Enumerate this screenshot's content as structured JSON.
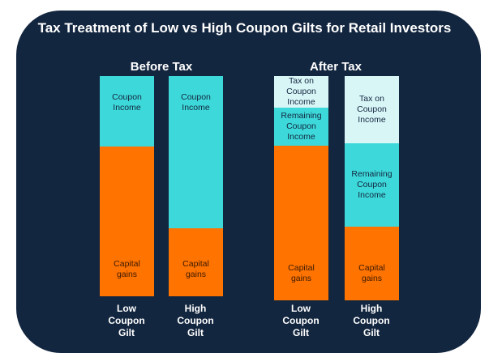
{
  "title": "Tax Treatment of Low vs High Coupon Gilts for Retail Investors",
  "colors": {
    "background": "#13263f",
    "coupon_income": "#3dd8d9",
    "capital_gains": "#ff7300",
    "tax": "#d9f6f7",
    "text_dark": "#3b1a00"
  },
  "groups": [
    {
      "title": "Before Tax",
      "bars": [
        {
          "label": "Low\nCoupon\nGilt",
          "segments": [
            {
              "name": "Coupon\nIncome",
              "share_pct": 32,
              "kind": "coupon_income",
              "text_pos": "top"
            },
            {
              "name": "Capital\ngains",
              "share_pct": 68,
              "kind": "capital_gains",
              "text_pos": "bottom"
            }
          ]
        },
        {
          "label": "High\nCoupon\nGilt",
          "segments": [
            {
              "name": "Coupon\nIncome",
              "share_pct": 69,
              "kind": "coupon_income",
              "text_pos": "top"
            },
            {
              "name": "Capital\ngains",
              "share_pct": 31,
              "kind": "capital_gains",
              "text_pos": "bottom"
            }
          ]
        }
      ]
    },
    {
      "title": "After Tax",
      "bars": [
        {
          "label": "Low\nCoupon\nGilt",
          "segments": [
            {
              "name": "Tax on\nCoupon\nIncome",
              "share_pct": 14,
              "kind": "tax",
              "text_pos": "center"
            },
            {
              "name": "Remaining\nCoupon\nIncome",
              "share_pct": 17,
              "kind": "coupon_income",
              "text_pos": "center"
            },
            {
              "name": "Capital\ngains",
              "share_pct": 69,
              "kind": "capital_gains",
              "text_pos": "bottom"
            }
          ]
        },
        {
          "label": "High\nCoupon\nGilt",
          "segments": [
            {
              "name": "Tax on\nCoupon\nIncome",
              "share_pct": 30,
              "kind": "tax",
              "text_pos": "center"
            },
            {
              "name": "Remaining\nCoupon\nIncome",
              "share_pct": 37,
              "kind": "coupon_income",
              "text_pos": "center"
            },
            {
              "name": "Capital\ngains",
              "share_pct": 33,
              "kind": "capital_gains",
              "text_pos": "bottom"
            }
          ]
        }
      ]
    }
  ]
}
